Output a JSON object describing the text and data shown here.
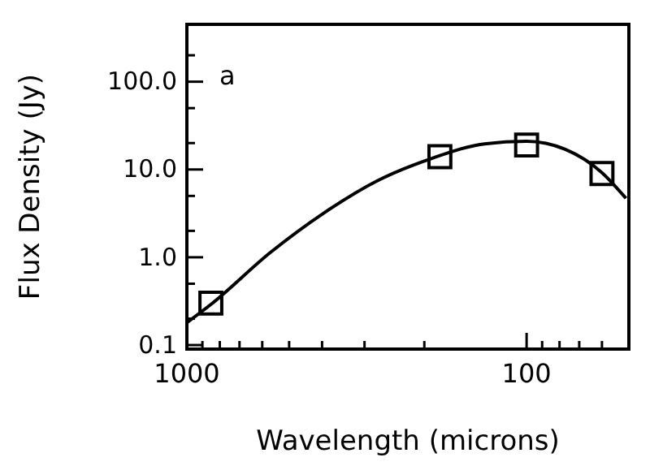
{
  "chart_data": {
    "type": "scatter",
    "xlabel": "Wavelength (microns)",
    "ylabel": "Flux Density (Jy)",
    "annotations": [
      "a"
    ],
    "log": "xy",
    "xlim": [
      1000,
      50
    ],
    "ylim": [
      0.09,
      450
    ],
    "xticks": [
      1000,
      {
        "value": 900,
        "label": null
      },
      {
        "value": 800,
        "label": null
      },
      {
        "value": 700,
        "label": null
      },
      {
        "value": 600,
        "label": null
      },
      {
        "value": 500,
        "label": null
      },
      {
        "value": 400,
        "label": null
      },
      {
        "value": 300,
        "label": null
      },
      {
        "value": 200,
        "label": null
      },
      100,
      {
        "value": 90,
        "label": null
      },
      {
        "value": 80,
        "label": null
      },
      {
        "value": 70,
        "label": null
      },
      {
        "value": 60,
        "label": null
      }
    ],
    "yticks": [
      {
        "value": 0.1,
        "label": "0.1"
      },
      {
        "value": 0.2,
        "label": null
      },
      {
        "value": 0.5,
        "label": null
      },
      {
        "value": 1,
        "label": "1.0"
      },
      {
        "value": 2,
        "label": null
      },
      {
        "value": 5,
        "label": null
      },
      {
        "value": 10,
        "label": "10.0"
      },
      {
        "value": 20,
        "label": null
      },
      {
        "value": 50,
        "label": null
      },
      {
        "value": 100,
        "label": "100.0"
      },
      {
        "value": 200,
        "label": null
      }
    ],
    "grid": false,
    "series": [
      {
        "marker": "square",
        "color": "#000000",
        "x": [
          850,
          180,
          100,
          60
        ],
        "values": [
          0.3,
          14,
          19,
          9
        ]
      },
      {
        "type": "line",
        "marker": "none",
        "line_style": "solid",
        "color": "#000000",
        "x": [
          1000,
          850,
          567,
          395,
          276,
          190,
          133,
          100,
          77,
          60,
          51
        ],
        "values": [
          0.18,
          0.29,
          1.14,
          3.2,
          7.4,
          13.4,
          19.6,
          21,
          17,
          9.2,
          4.7
        ]
      }
    ]
  }
}
